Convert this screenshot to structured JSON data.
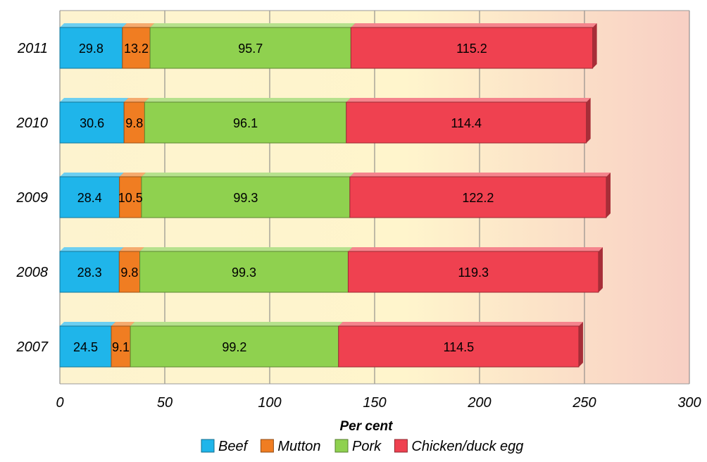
{
  "chart_data": {
    "type": "bar",
    "orientation": "horizontal",
    "stacked": true,
    "categories": [
      "2007",
      "2008",
      "2009",
      "2010",
      "2011"
    ],
    "series": [
      {
        "name": "Beef",
        "values": [
          24.5,
          28.3,
          28.4,
          30.6,
          29.8
        ],
        "color": "#1fb5ea"
      },
      {
        "name": "Mutton",
        "values": [
          9.1,
          9.8,
          10.5,
          9.8,
          13.2
        ],
        "color": "#f07d22"
      },
      {
        "name": "Pork",
        "values": [
          99.2,
          99.3,
          99.3,
          96.1,
          95.7
        ],
        "color": "#8fd14f"
      },
      {
        "name": "Chicken/duck egg",
        "values": [
          114.5,
          119.3,
          122.2,
          114.4,
          115.2
        ],
        "color": "#ef4150"
      }
    ],
    "xlabel": "Per cent",
    "xlim": [
      0,
      300
    ],
    "xticks": [
      0,
      50,
      100,
      150,
      200,
      250,
      300
    ],
    "grid": true,
    "legend": "bottom"
  }
}
